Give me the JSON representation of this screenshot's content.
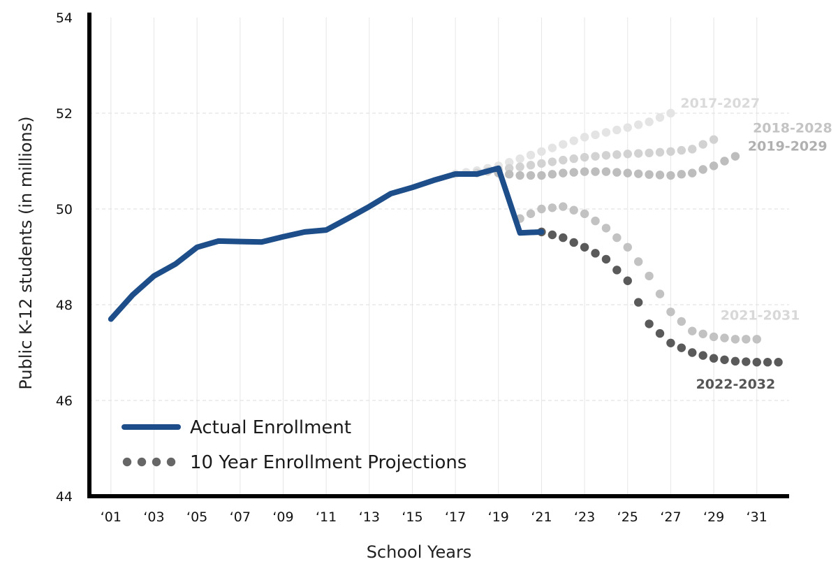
{
  "chart_data": {
    "type": "line",
    "xlabel": "School Years",
    "ylabel": "Public K-12 students (in millions)",
    "xlim": [
      2000,
      2032.5
    ],
    "ylim": [
      44,
      54
    ],
    "grid": true,
    "legend_placement": "bottom-left",
    "x_ticks": [
      {
        "x": 2001,
        "label": "‘01"
      },
      {
        "x": 2003,
        "label": "‘03"
      },
      {
        "x": 2005,
        "label": "‘05"
      },
      {
        "x": 2007,
        "label": "‘07"
      },
      {
        "x": 2009,
        "label": "‘09"
      },
      {
        "x": 2011,
        "label": "‘11"
      },
      {
        "x": 2013,
        "label": "‘13"
      },
      {
        "x": 2015,
        "label": "‘15"
      },
      {
        "x": 2017,
        "label": "‘17"
      },
      {
        "x": 2019,
        "label": "‘19"
      },
      {
        "x": 2021,
        "label": "‘21"
      },
      {
        "x": 2023,
        "label": "‘23"
      },
      {
        "x": 2025,
        "label": "‘25"
      },
      {
        "x": 2027,
        "label": "‘27"
      },
      {
        "x": 2029,
        "label": "‘29"
      },
      {
        "x": 2031,
        "label": "‘31"
      }
    ],
    "y_ticks": [
      44,
      46,
      48,
      50,
      52,
      54
    ],
    "legend": [
      {
        "label": "Actual Enrollment",
        "style": "solid",
        "color": "#1d4e89"
      },
      {
        "label": "10 Year Enrollment Projections",
        "style": "dotted",
        "color": "#666666"
      }
    ],
    "actual": {
      "name": "Actual Enrollment",
      "color": "#1d4e89",
      "points": [
        [
          2001,
          47.7
        ],
        [
          2002,
          48.2
        ],
        [
          2003,
          48.6
        ],
        [
          2004,
          48.85
        ],
        [
          2005,
          49.2
        ],
        [
          2006,
          49.33
        ],
        [
          2007,
          49.32
        ],
        [
          2008,
          49.31
        ],
        [
          2009,
          49.42
        ],
        [
          2010,
          49.52
        ],
        [
          2011,
          49.56
        ],
        [
          2012,
          49.8
        ],
        [
          2013,
          50.05
        ],
        [
          2014,
          50.32
        ],
        [
          2015,
          50.45
        ],
        [
          2016,
          50.6
        ],
        [
          2017,
          50.73
        ],
        [
          2018,
          50.73
        ],
        [
          2019,
          50.85
        ],
        [
          2020,
          49.5
        ],
        [
          2021,
          49.52
        ]
      ]
    },
    "projections": [
      {
        "label": "2017-2027",
        "color": "#e4e4e4",
        "label_color": "#dadada",
        "points": [
          [
            2017,
            50.73
          ],
          [
            2018,
            50.8
          ],
          [
            2019,
            50.9
          ],
          [
            2020,
            51.05
          ],
          [
            2021,
            51.2
          ],
          [
            2022,
            51.35
          ],
          [
            2023,
            51.5
          ],
          [
            2024,
            51.6
          ],
          [
            2025,
            51.7
          ],
          [
            2026,
            51.82
          ],
          [
            2027,
            52.0
          ]
        ]
      },
      {
        "label": "2018-2028",
        "color": "#d2d2d2",
        "label_color": "#c4c4c4",
        "points": [
          [
            2018,
            50.75
          ],
          [
            2019,
            50.82
          ],
          [
            2020,
            50.88
          ],
          [
            2021,
            50.95
          ],
          [
            2022,
            51.02
          ],
          [
            2023,
            51.08
          ],
          [
            2024,
            51.12
          ],
          [
            2025,
            51.15
          ],
          [
            2026,
            51.17
          ],
          [
            2027,
            51.2
          ],
          [
            2028,
            51.25
          ],
          [
            2029,
            51.45
          ]
        ]
      },
      {
        "label": "2019-2029",
        "color": "#bdbdbd",
        "label_color": "#b0b0b0",
        "points": [
          [
            2019,
            50.75
          ],
          [
            2020,
            50.7
          ],
          [
            2021,
            50.7
          ],
          [
            2022,
            50.75
          ],
          [
            2023,
            50.78
          ],
          [
            2024,
            50.78
          ],
          [
            2025,
            50.75
          ],
          [
            2026,
            50.72
          ],
          [
            2027,
            50.7
          ],
          [
            2028,
            50.75
          ],
          [
            2029,
            50.9
          ],
          [
            2030,
            51.1
          ]
        ]
      },
      {
        "label": "2021-2031",
        "color": "#c2c2c2",
        "label_color": "#d8d8d8",
        "points": [
          [
            2020,
            49.8
          ],
          [
            2021,
            50.0
          ],
          [
            2022,
            50.05
          ],
          [
            2023,
            49.9
          ],
          [
            2024,
            49.6
          ],
          [
            2025,
            49.2
          ],
          [
            2026,
            48.6
          ],
          [
            2027,
            47.85
          ],
          [
            2028,
            47.45
          ],
          [
            2029,
            47.33
          ],
          [
            2030,
            47.28
          ],
          [
            2031,
            47.28
          ]
        ]
      },
      {
        "label": "2022-2032",
        "color": "#5a5a5a",
        "label_color": "#555555",
        "points": [
          [
            2021,
            49.52
          ],
          [
            2022,
            49.4
          ],
          [
            2023,
            49.2
          ],
          [
            2024,
            48.95
          ],
          [
            2025,
            48.5
          ],
          [
            2026,
            47.6
          ],
          [
            2027,
            47.2
          ],
          [
            2028,
            47.0
          ],
          [
            2029,
            46.88
          ],
          [
            2030,
            46.82
          ],
          [
            2031,
            46.8
          ],
          [
            2032,
            46.8
          ]
        ]
      }
    ]
  }
}
